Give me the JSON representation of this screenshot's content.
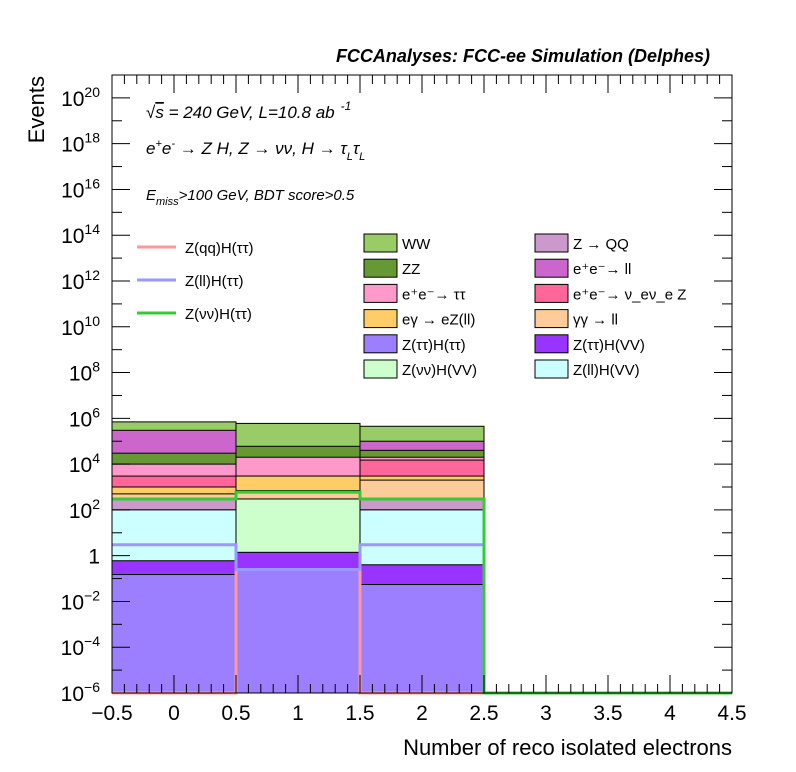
{
  "chart_data": {
    "type": "bar",
    "stacked": true,
    "title": "FCCAnalyses: FCC-ee Simulation (Delphes)",
    "xlabel": "Number of reco isolated electrons",
    "ylabel": "Events",
    "xlim": [
      -0.5,
      4.5
    ],
    "ylim": [
      1e-06,
      1e+21
    ],
    "log_y": true,
    "x_ticks": [
      "−0.5",
      "0",
      "0.5",
      "1",
      "1.5",
      "2",
      "2.5",
      "3",
      "3.5",
      "4",
      "4.5"
    ],
    "y_ticks": [
      {
        "base": "10",
        "exp": "−6"
      },
      {
        "base": "10",
        "exp": "−4"
      },
      {
        "base": "10",
        "exp": "−2"
      },
      {
        "base": "1",
        "exp": ""
      },
      {
        "base": "10",
        "exp": "2"
      },
      {
        "base": "10",
        "exp": "4"
      },
      {
        "base": "10",
        "exp": "6"
      },
      {
        "base": "10",
        "exp": "8"
      },
      {
        "base": "10",
        "exp": "10"
      },
      {
        "base": "10",
        "exp": "12"
      },
      {
        "base": "10",
        "exp": "14"
      },
      {
        "base": "10",
        "exp": "16"
      },
      {
        "base": "10",
        "exp": "18"
      },
      {
        "base": "10",
        "exp": "20"
      }
    ],
    "bin_edges": [
      -0.5,
      0.5,
      1.5,
      2.5
    ],
    "annotations": {
      "energy": "√s = 240 GeV, L=10.8 ab ⁻¹",
      "process": "e⁺e⁻ → Z H, Z → νν, H → τ_L τ_L",
      "selection": "E_miss>100 GeV, BDT score>0.5"
    },
    "stack": [
      {
        "name": "Z(ττ)H(ττ)",
        "color": "#9b7fff",
        "cumulative": [
          0.15,
          0.25,
          0.055
        ]
      },
      {
        "name": "Z(ττ)H(VV)",
        "color": "#9933ff",
        "cumulative": [
          0.6,
          1.4,
          0.4
        ]
      },
      {
        "name": "Z(ll)H(VV)",
        "color": "#ccffff",
        "cumulative": [
          100,
          0.6,
          100
        ]
      },
      {
        "name": "Z(νν)H(VV)",
        "color": "#ccffcc",
        "cumulative": [
          100,
          300,
          100
        ]
      },
      {
        "name": "Z → QQ",
        "color": "#cc99cc",
        "cumulative": [
          300,
          300,
          300
        ]
      },
      {
        "name": "γγ → ll",
        "color": "#ffcc99",
        "cumulative": [
          500,
          700,
          2000
        ]
      },
      {
        "name": "eγ → eZ(ll)",
        "color": "#ffcc66",
        "cumulative": [
          1000,
          3000,
          3000
        ]
      },
      {
        "name": "e⁺e⁻ → ν_eν_e Z",
        "color": "#ff6699",
        "cumulative": [
          3000,
          3000,
          15000
        ]
      },
      {
        "name": "e⁺e⁻ → ττ",
        "color": "#ff99cc",
        "cumulative": [
          10000,
          20000,
          20000
        ]
      },
      {
        "name": "ZZ",
        "color": "#669933",
        "cumulative": [
          30000,
          60000,
          40000
        ]
      },
      {
        "name": "e⁺e⁻ → ll",
        "color": "#cc66cc",
        "cumulative": [
          300000,
          30000,
          100000
        ]
      },
      {
        "name": "WW",
        "color": "#99cc66",
        "cumulative": [
          700000,
          600000,
          450000
        ]
      }
    ],
    "signal_lines": [
      {
        "name": "Z(qq)H(ττ)",
        "color": "#ff9999",
        "values": [
          1e-06,
          0.25,
          1e-06
        ]
      },
      {
        "name": "Z(ll)H(ττ)",
        "color": "#9999ff",
        "values": [
          3,
          0.25,
          3
        ]
      },
      {
        "name": "Z(νν)H(ττ)",
        "color": "#33cc33",
        "values": [
          300,
          600,
          300
        ]
      }
    ],
    "legend": {
      "left": [
        {
          "label": "Z(qq)H(ττ)",
          "color": "#ff9999",
          "kind": "line"
        },
        {
          "label": "Z(ll)H(ττ)",
          "color": "#9999ff",
          "kind": "line"
        },
        {
          "label": "Z(νν)H(ττ)",
          "color": "#33cc33",
          "kind": "line"
        }
      ],
      "middle": [
        {
          "label": "WW",
          "color": "#99cc66"
        },
        {
          "label": "ZZ",
          "color": "#669933"
        },
        {
          "label": "e⁺e⁻→ ττ",
          "color": "#ff99cc"
        },
        {
          "label": "eγ → eZ(ll)",
          "color": "#ffcc66"
        },
        {
          "label": "Z(ττ)H(ττ)",
          "color": "#9b7fff"
        },
        {
          "label": "Z(νν)H(VV)",
          "color": "#ccffcc"
        }
      ],
      "right": [
        {
          "label": "Z → QQ",
          "color": "#cc99cc"
        },
        {
          "label": "e⁺e⁻→ ll",
          "color": "#cc66cc"
        },
        {
          "label": "e⁺e⁻→ ν_eν_e Z",
          "color": "#ff6699"
        },
        {
          "label": "γγ → ll",
          "color": "#ffcc99"
        },
        {
          "label": "Z(ττ)H(VV)",
          "color": "#9933ff"
        },
        {
          "label": "Z(ll)H(VV)",
          "color": "#ccffff"
        }
      ]
    }
  }
}
